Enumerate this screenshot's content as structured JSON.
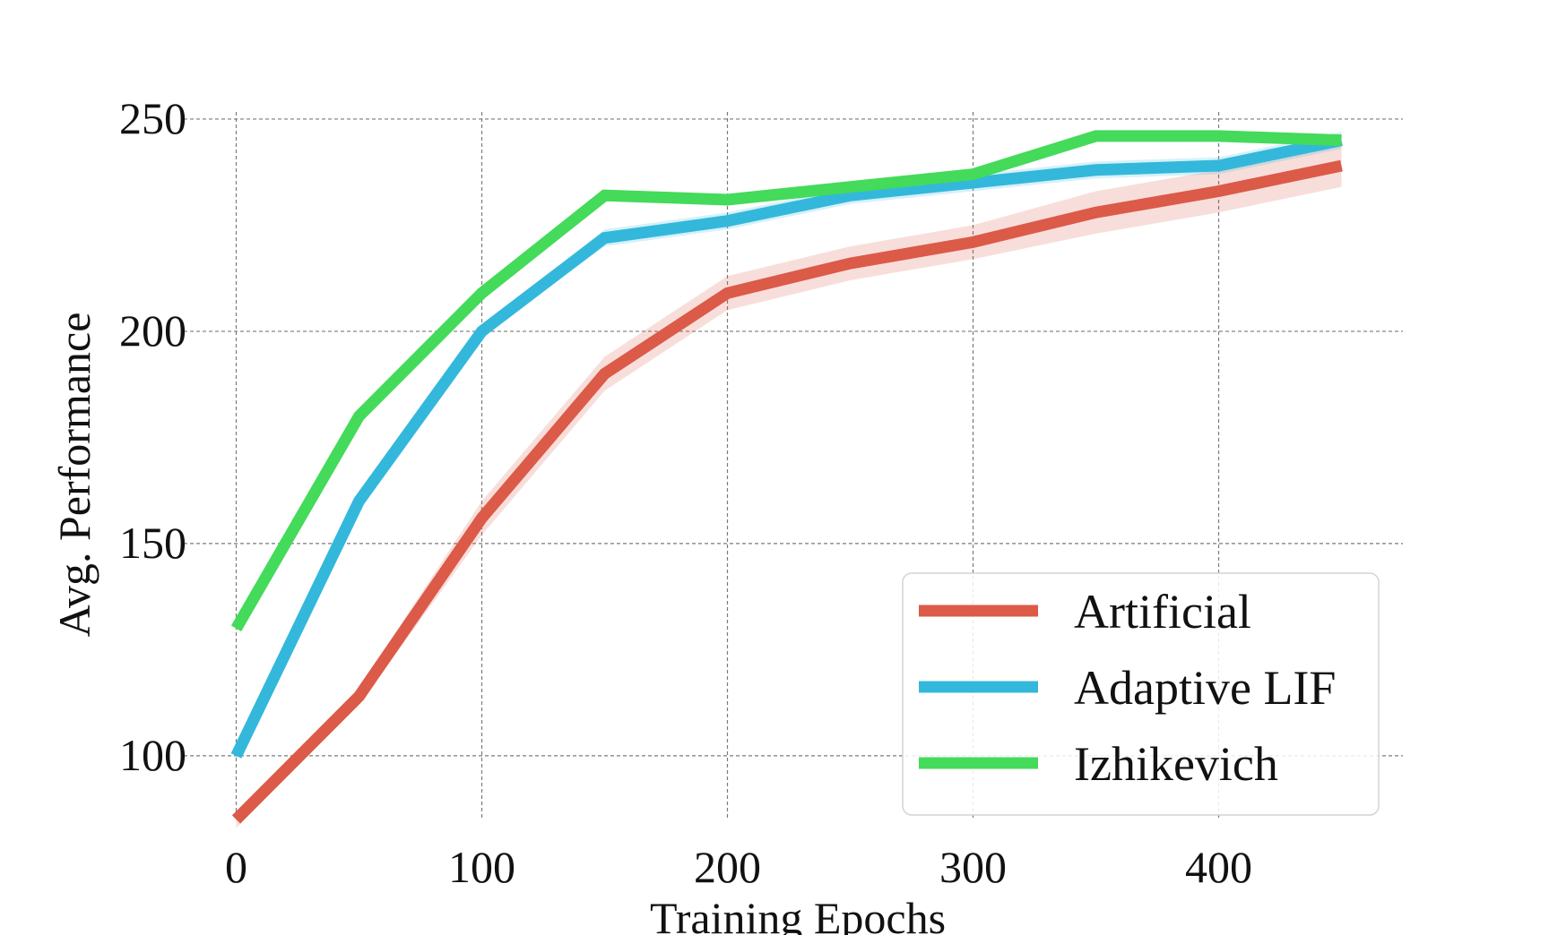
{
  "chart_data": {
    "type": "line",
    "title": "",
    "xlabel": "Training Epochs",
    "ylabel": "Avg. Performance",
    "xlim": [
      -25,
      475
    ],
    "ylim": [
      85,
      258
    ],
    "xticks": [
      0,
      100,
      200,
      300,
      400
    ],
    "yticks": [
      100,
      150,
      200,
      250
    ],
    "grid": true,
    "legend_position": "lower-right",
    "x": [
      0,
      50,
      100,
      150,
      200,
      250,
      300,
      350,
      400,
      450
    ],
    "series": [
      {
        "name": "Artificial",
        "color": "#dc5a48",
        "values": [
          85,
          114,
          156,
          190,
          209,
          216,
          221,
          228,
          233,
          239
        ],
        "band": [
          2,
          2,
          4,
          4,
          4,
          4,
          4,
          5,
          5,
          5
        ]
      },
      {
        "name": "Adaptive LIF",
        "color": "#33b8dc",
        "values": [
          100,
          160,
          200,
          222,
          226,
          232,
          235,
          238,
          239,
          245
        ],
        "band": [
          1,
          1,
          1,
          2,
          2,
          2,
          2,
          2,
          2,
          2
        ]
      },
      {
        "name": "Izhikevich",
        "color": "#44da5a",
        "values": [
          130,
          180,
          209,
          232,
          231,
          234,
          237,
          246,
          246,
          245
        ],
        "band": [
          1,
          1,
          1,
          1,
          1,
          1,
          1,
          1,
          1,
          1
        ]
      }
    ]
  }
}
